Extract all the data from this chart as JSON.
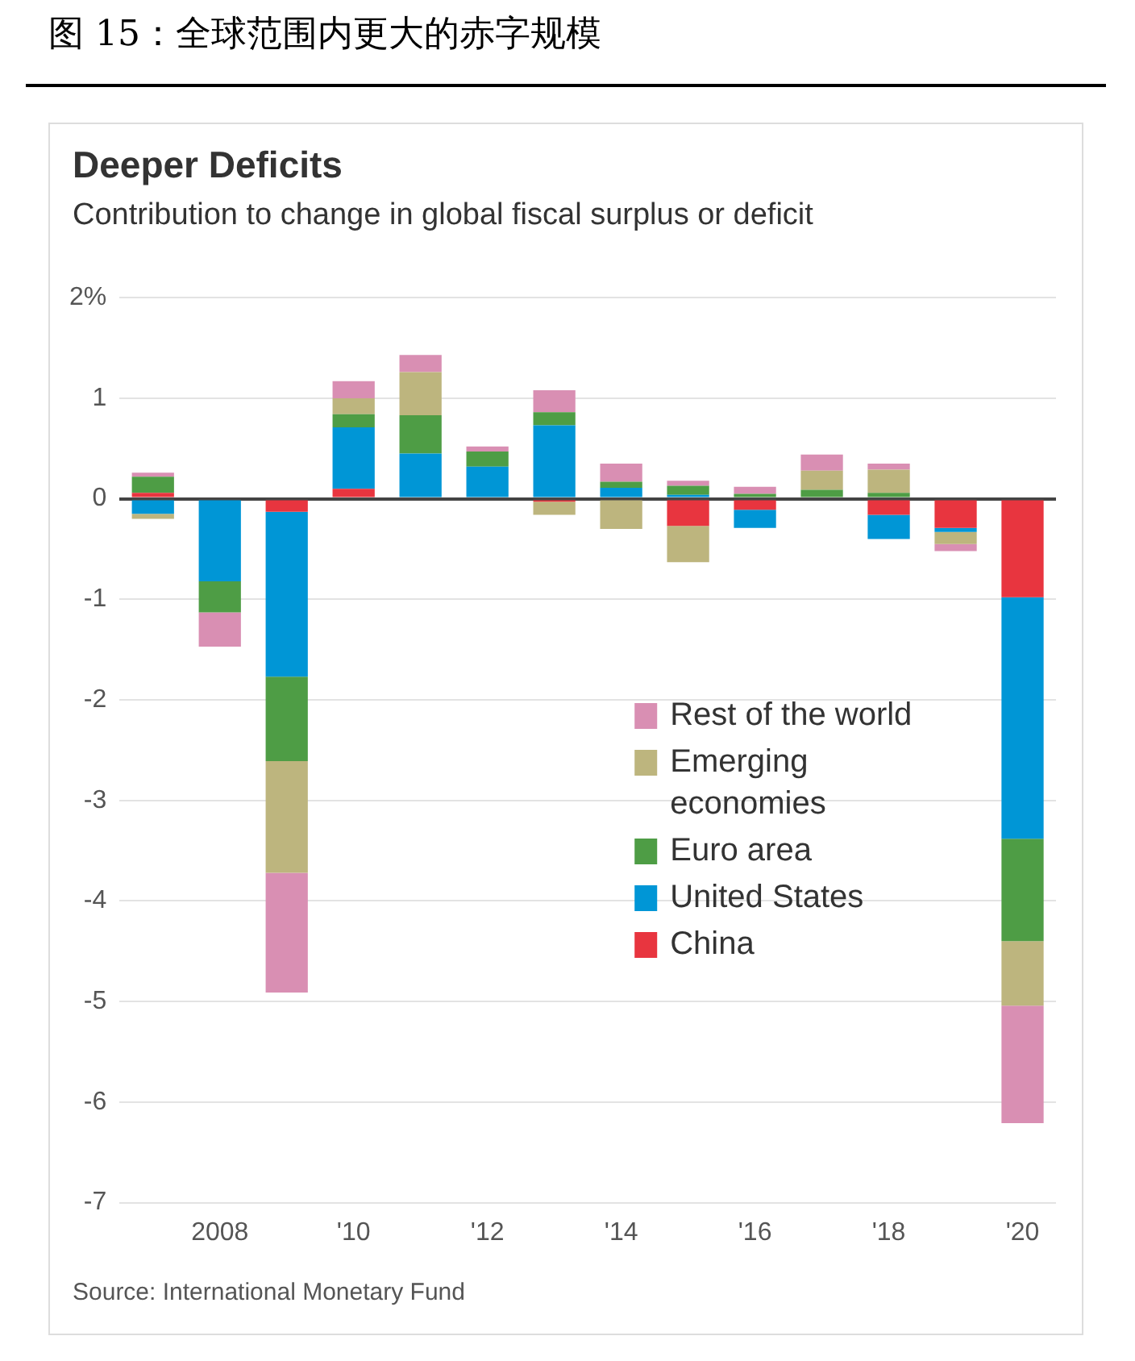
{
  "chart_data": {
    "type": "bar",
    "stacked": true,
    "title": "Deeper Deficits",
    "subtitle": "Contribution to change in global fiscal surplus or deficit",
    "annotations": [
      "图 15：全球范围内更大的赤字规模",
      "Source: International Monetary Fund"
    ],
    "categories": [
      null,
      "2008",
      null,
      "'10",
      null,
      "'12",
      null,
      "'14",
      null,
      "'16",
      null,
      "'18",
      null,
      "'20"
    ],
    "series": [
      {
        "name": "China",
        "color": "#e8353f",
        "values": [
          0.06,
          null,
          -0.13,
          0.1,
          null,
          null,
          -0.03,
          null,
          -0.27,
          -0.11,
          null,
          -0.16,
          -0.29,
          -0.98
        ]
      },
      {
        "name": "United States",
        "color": "#0096d6",
        "values": [
          -0.15,
          -0.82,
          -1.64,
          0.61,
          0.45,
          0.32,
          0.73,
          0.11,
          0.04,
          -0.18,
          null,
          -0.24,
          -0.04,
          -2.4
        ]
      },
      {
        "name": "Euro area",
        "color": "#4e9d45",
        "values": [
          0.16,
          -0.31,
          -0.84,
          0.13,
          0.38,
          0.15,
          0.13,
          0.06,
          0.09,
          0.05,
          0.09,
          0.06,
          null,
          -1.02
        ]
      },
      {
        "name": "Emerging economies",
        "color": "#bdb57e",
        "values": [
          -0.05,
          null,
          -1.11,
          0.16,
          0.43,
          null,
          -0.13,
          -0.3,
          -0.36,
          null,
          0.19,
          0.23,
          -0.12,
          -0.64
        ]
      },
      {
        "name": "Rest of the world",
        "color": "#d98fb3",
        "values": [
          0.04,
          -0.34,
          -1.19,
          0.17,
          0.17,
          0.05,
          0.22,
          0.18,
          0.05,
          0.07,
          0.16,
          0.06,
          -0.07,
          -1.17
        ]
      }
    ],
    "ylim": [
      -7,
      2
    ],
    "yticks": [
      {
        "value": 2,
        "label": "2%"
      },
      1,
      0,
      -1,
      -2,
      -3,
      -4,
      -5,
      -6,
      -7
    ],
    "grid": "y",
    "legend": "right"
  }
}
